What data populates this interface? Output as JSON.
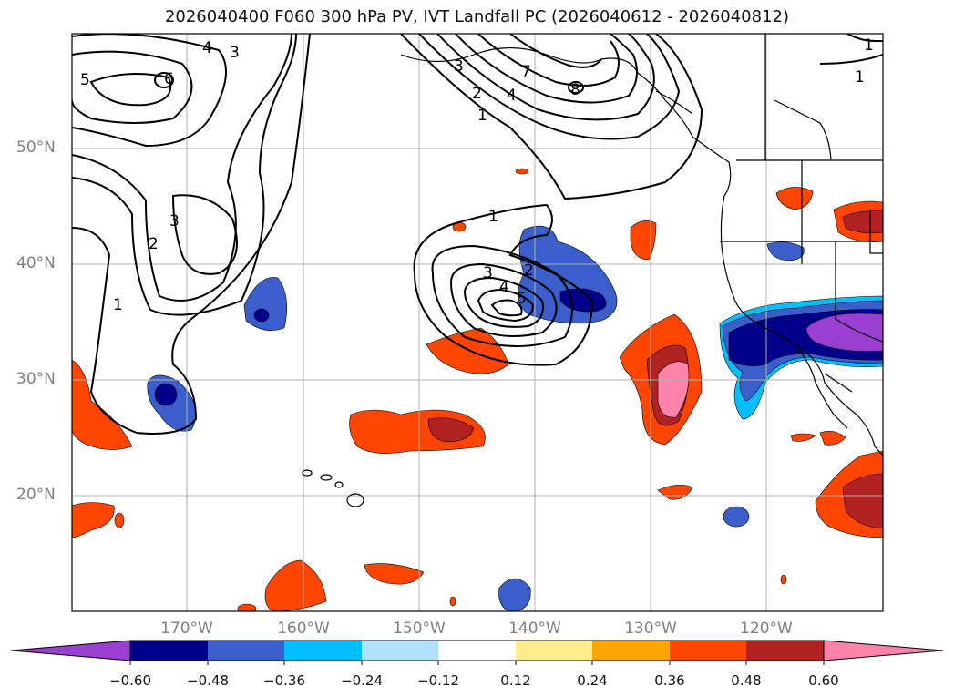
{
  "title": "2026040400 F060 300 hPa PV, IVT Landfall PC (2026040612 - 2026040812)",
  "lat_labels": [
    "50°N",
    "40°N",
    "30°N",
    "20°N"
  ],
  "lon_labels": [
    "170°W",
    "160°W",
    "150°W",
    "140°W",
    "130°W",
    "120°W"
  ],
  "contour_labels": [
    "5",
    "6",
    "4",
    "3",
    "3",
    "2",
    "1",
    "7",
    "4",
    "8",
    "1",
    "1",
    "3",
    "2",
    "1",
    "1",
    "3",
    "2",
    "4",
    "5"
  ],
  "colorbar": {
    "tick_labels": [
      "−0.60",
      "−0.48",
      "−0.36",
      "−0.24",
      "−0.12",
      "0.12",
      "0.24",
      "0.36",
      "0.48",
      "0.60"
    ],
    "colors": [
      "#9a3fd1",
      "#00008b",
      "#3a5fcd",
      "#00bfff",
      "#b0e2ff",
      "#ffffff",
      "#ffec8b",
      "#ffa500",
      "#ff4500",
      "#b22222",
      "#ff82ab"
    ]
  },
  "colors": {
    "contour": "#000000",
    "grid": "#b0b0b0",
    "axis_label": "#808080"
  }
}
